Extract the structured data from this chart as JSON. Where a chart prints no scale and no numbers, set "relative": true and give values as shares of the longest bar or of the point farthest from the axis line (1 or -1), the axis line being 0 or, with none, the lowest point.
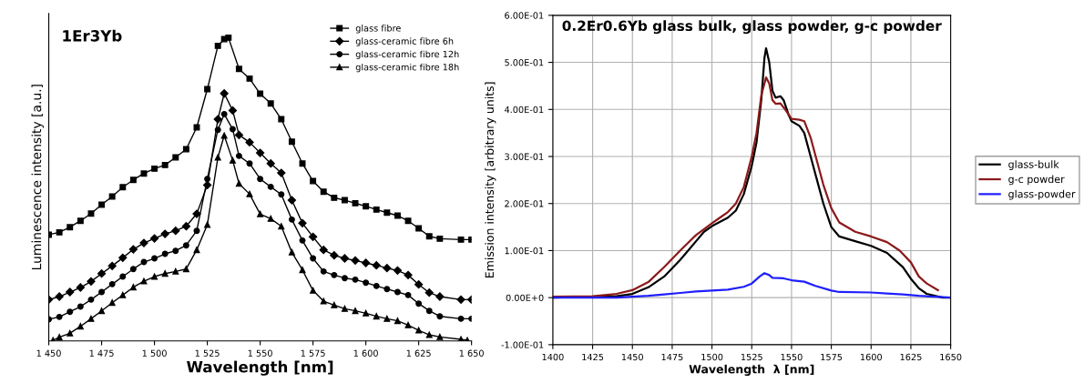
{
  "chart_data": [
    {
      "type": "line",
      "relative": true,
      "xlabel": "Wavelength [nm]",
      "ylabel": "Luminescence intensity [a.u.]",
      "annotations": [
        "1Er3Yb"
      ],
      "legend": "top right",
      "grid": false,
      "tick_labels": "x",
      "xlim": [
        1450,
        1650
      ],
      "xticks": [
        {
          "value": 1450,
          "label": "1 450"
        },
        {
          "value": 1475,
          "label": "1 475"
        },
        {
          "value": 1500,
          "label": "1 500"
        },
        {
          "value": 1525,
          "label": "1 525"
        },
        {
          "value": 1550,
          "label": "1 550"
        },
        {
          "value": 1575,
          "label": "1 575"
        },
        {
          "value": 1600,
          "label": "1 600"
        },
        {
          "value": 1625,
          "label": "1 625"
        },
        {
          "value": 1650,
          "label": "1 650"
        }
      ],
      "series": [
        {
          "name": "glass fibre",
          "color": "#000000",
          "marker": "square",
          "x": [
            1450,
            1455,
            1460,
            1465,
            1470,
            1475,
            1480,
            1485,
            1490,
            1495,
            1500,
            1505,
            1510,
            1515,
            1520,
            1525,
            1530,
            1533,
            1535,
            1540,
            1545,
            1550,
            1555,
            1560,
            1565,
            1570,
            1575,
            1580,
            1585,
            1590,
            1595,
            1600,
            1605,
            1610,
            1615,
            1620,
            1625,
            1630,
            1635,
            1645,
            1650
          ],
          "values": [
            0.35,
            0.358,
            0.375,
            0.396,
            0.42,
            0.449,
            0.476,
            0.507,
            0.531,
            0.552,
            0.568,
            0.58,
            0.605,
            0.632,
            0.704,
            0.83,
            0.973,
            0.995,
            1.0,
            0.897,
            0.865,
            0.815,
            0.783,
            0.731,
            0.657,
            0.585,
            0.527,
            0.492,
            0.472,
            0.464,
            0.454,
            0.444,
            0.433,
            0.423,
            0.413,
            0.396,
            0.371,
            0.345,
            0.337,
            0.334,
            0.334
          ]
        },
        {
          "name": "glass-ceramic fibre 6h",
          "color": "#000000",
          "marker": "diamond",
          "x": [
            1450,
            1455,
            1460,
            1465,
            1470,
            1475,
            1480,
            1485,
            1490,
            1495,
            1500,
            1505,
            1510,
            1515,
            1520,
            1525,
            1530,
            1533,
            1537,
            1540,
            1545,
            1550,
            1555,
            1560,
            1565,
            1570,
            1575,
            1580,
            1585,
            1590,
            1595,
            1600,
            1605,
            1610,
            1615,
            1620,
            1625,
            1630,
            1635,
            1645,
            1650
          ],
          "values": [
            0.136,
            0.146,
            0.161,
            0.176,
            0.196,
            0.222,
            0.247,
            0.274,
            0.302,
            0.323,
            0.338,
            0.353,
            0.363,
            0.378,
            0.419,
            0.514,
            0.731,
            0.816,
            0.76,
            0.679,
            0.655,
            0.62,
            0.585,
            0.554,
            0.464,
            0.388,
            0.343,
            0.3,
            0.282,
            0.272,
            0.265,
            0.257,
            0.249,
            0.24,
            0.232,
            0.217,
            0.186,
            0.159,
            0.146,
            0.136,
            0.136
          ]
        },
        {
          "name": "glass-ceramic fibre 12h",
          "color": "#000000",
          "marker": "circle",
          "x": [
            1450,
            1455,
            1460,
            1465,
            1470,
            1475,
            1480,
            1485,
            1490,
            1495,
            1500,
            1505,
            1510,
            1515,
            1520,
            1525,
            1530,
            1533,
            1537,
            1540,
            1545,
            1550,
            1555,
            1560,
            1565,
            1570,
            1575,
            1580,
            1585,
            1590,
            1595,
            1600,
            1605,
            1610,
            1615,
            1620,
            1625,
            1630,
            1635,
            1645,
            1650
          ],
          "values": [
            0.071,
            0.079,
            0.096,
            0.113,
            0.136,
            0.161,
            0.187,
            0.212,
            0.237,
            0.26,
            0.272,
            0.287,
            0.297,
            0.315,
            0.363,
            0.534,
            0.696,
            0.748,
            0.698,
            0.61,
            0.585,
            0.534,
            0.508,
            0.483,
            0.4,
            0.331,
            0.272,
            0.229,
            0.217,
            0.207,
            0.202,
            0.192,
            0.181,
            0.171,
            0.161,
            0.151,
            0.123,
            0.099,
            0.081,
            0.073,
            0.073
          ]
        },
        {
          "name": "glass-ceramic fibre 18h",
          "color": "#000000",
          "marker": "triangle",
          "x": [
            1452,
            1455,
            1460,
            1465,
            1470,
            1475,
            1480,
            1485,
            1490,
            1495,
            1500,
            1505,
            1510,
            1515,
            1520,
            1525,
            1530,
            1533,
            1537,
            1540,
            1545,
            1550,
            1555,
            1560,
            1565,
            1570,
            1575,
            1580,
            1585,
            1590,
            1595,
            1600,
            1605,
            1610,
            1615,
            1620,
            1625,
            1630,
            1635,
            1645,
            1648
          ],
          "values": [
            0.002,
            0.012,
            0.025,
            0.048,
            0.073,
            0.099,
            0.126,
            0.151,
            0.177,
            0.197,
            0.212,
            0.222,
            0.229,
            0.237,
            0.3,
            0.383,
            0.605,
            0.677,
            0.595,
            0.519,
            0.484,
            0.418,
            0.403,
            0.378,
            0.292,
            0.234,
            0.166,
            0.131,
            0.118,
            0.106,
            0.099,
            0.091,
            0.081,
            0.073,
            0.066,
            0.052,
            0.035,
            0.02,
            0.013,
            0.005,
            0.002
          ]
        }
      ]
    },
    {
      "type": "line",
      "title": "0.2Er0.6Yb glass bulk, glass powder, g-c powder",
      "xlabel": "Wavelength  λ [nm]",
      "ylabel": "Emission intensity [arbitrary units]",
      "legend": "right",
      "grid": true,
      "marker": "none",
      "xlim": [
        1400,
        1650
      ],
      "xticks": [
        1400,
        1425,
        1450,
        1475,
        1500,
        1525,
        1550,
        1575,
        1600,
        1625,
        1650
      ],
      "ylim": [
        -0.1,
        0.6
      ],
      "yticks": [
        {
          "value": -0.1,
          "label": "-1.00E-01"
        },
        {
          "value": 0,
          "label": "0.00E+0"
        },
        {
          "value": 0.1,
          "label": "1.00E-01"
        },
        {
          "value": 0.2,
          "label": "2.00E-01"
        },
        {
          "value": 0.3,
          "label": "3.00E-01"
        },
        {
          "value": 0.4,
          "label": "4.00E-01"
        },
        {
          "value": 0.5,
          "label": "5.00E-01"
        },
        {
          "value": 0.6,
          "label": "6.00E-01"
        }
      ],
      "series": [
        {
          "name": "glass-bulk",
          "color": "#000000",
          "x": [
            1400,
            1440,
            1450,
            1460,
            1470,
            1480,
            1490,
            1495,
            1500,
            1510,
            1515,
            1520,
            1525,
            1528,
            1531,
            1533,
            1534,
            1536,
            1538,
            1540,
            1543,
            1545,
            1548,
            1550,
            1555,
            1558,
            1562,
            1566,
            1570,
            1575,
            1580,
            1590,
            1600,
            1610,
            1615,
            1620,
            1625,
            1630,
            1635,
            1645,
            1650
          ],
          "values": [
            0,
            0.003,
            0.008,
            0.022,
            0.045,
            0.08,
            0.12,
            0.14,
            0.152,
            0.17,
            0.185,
            0.22,
            0.28,
            0.33,
            0.42,
            0.51,
            0.53,
            0.5,
            0.44,
            0.425,
            0.428,
            0.42,
            0.39,
            0.375,
            0.365,
            0.35,
            0.3,
            0.25,
            0.2,
            0.15,
            0.13,
            0.12,
            0.11,
            0.095,
            0.08,
            0.065,
            0.04,
            0.02,
            0.008,
            0,
            0
          ]
        },
        {
          "name": "g-c powder",
          "color": "#8b1a1a",
          "x": [
            1400,
            1425,
            1440,
            1450,
            1460,
            1470,
            1480,
            1490,
            1500,
            1505,
            1510,
            1515,
            1520,
            1525,
            1528,
            1531,
            1534,
            1536,
            1538,
            1540,
            1543,
            1546,
            1550,
            1555,
            1558,
            1562,
            1566,
            1570,
            1575,
            1580,
            1590,
            1600,
            1610,
            1618,
            1625,
            1630,
            1635,
            1642
          ],
          "values": [
            0.002,
            0.003,
            0.008,
            0.016,
            0.033,
            0.065,
            0.1,
            0.133,
            0.158,
            0.17,
            0.182,
            0.2,
            0.235,
            0.3,
            0.35,
            0.43,
            0.468,
            0.455,
            0.42,
            0.412,
            0.413,
            0.4,
            0.38,
            0.378,
            0.375,
            0.34,
            0.29,
            0.24,
            0.19,
            0.16,
            0.14,
            0.13,
            0.118,
            0.1,
            0.075,
            0.045,
            0.03,
            0.016
          ]
        },
        {
          "name": "glass-powder",
          "color": "#1f1fff",
          "x": [
            1400,
            1440,
            1460,
            1470,
            1480,
            1490,
            1500,
            1510,
            1520,
            1525,
            1530,
            1533,
            1536,
            1538,
            1545,
            1550,
            1558,
            1565,
            1575,
            1580,
            1600,
            1610,
            1620,
            1630,
            1640,
            1650
          ],
          "values": [
            0,
            0,
            0.004,
            0.007,
            0.01,
            0.013,
            0.015,
            0.017,
            0.023,
            0.03,
            0.045,
            0.052,
            0.048,
            0.042,
            0.041,
            0.037,
            0.034,
            0.025,
            0.015,
            0.012,
            0.011,
            0.009,
            0.007,
            0.004,
            0.002,
            0
          ]
        }
      ]
    }
  ]
}
